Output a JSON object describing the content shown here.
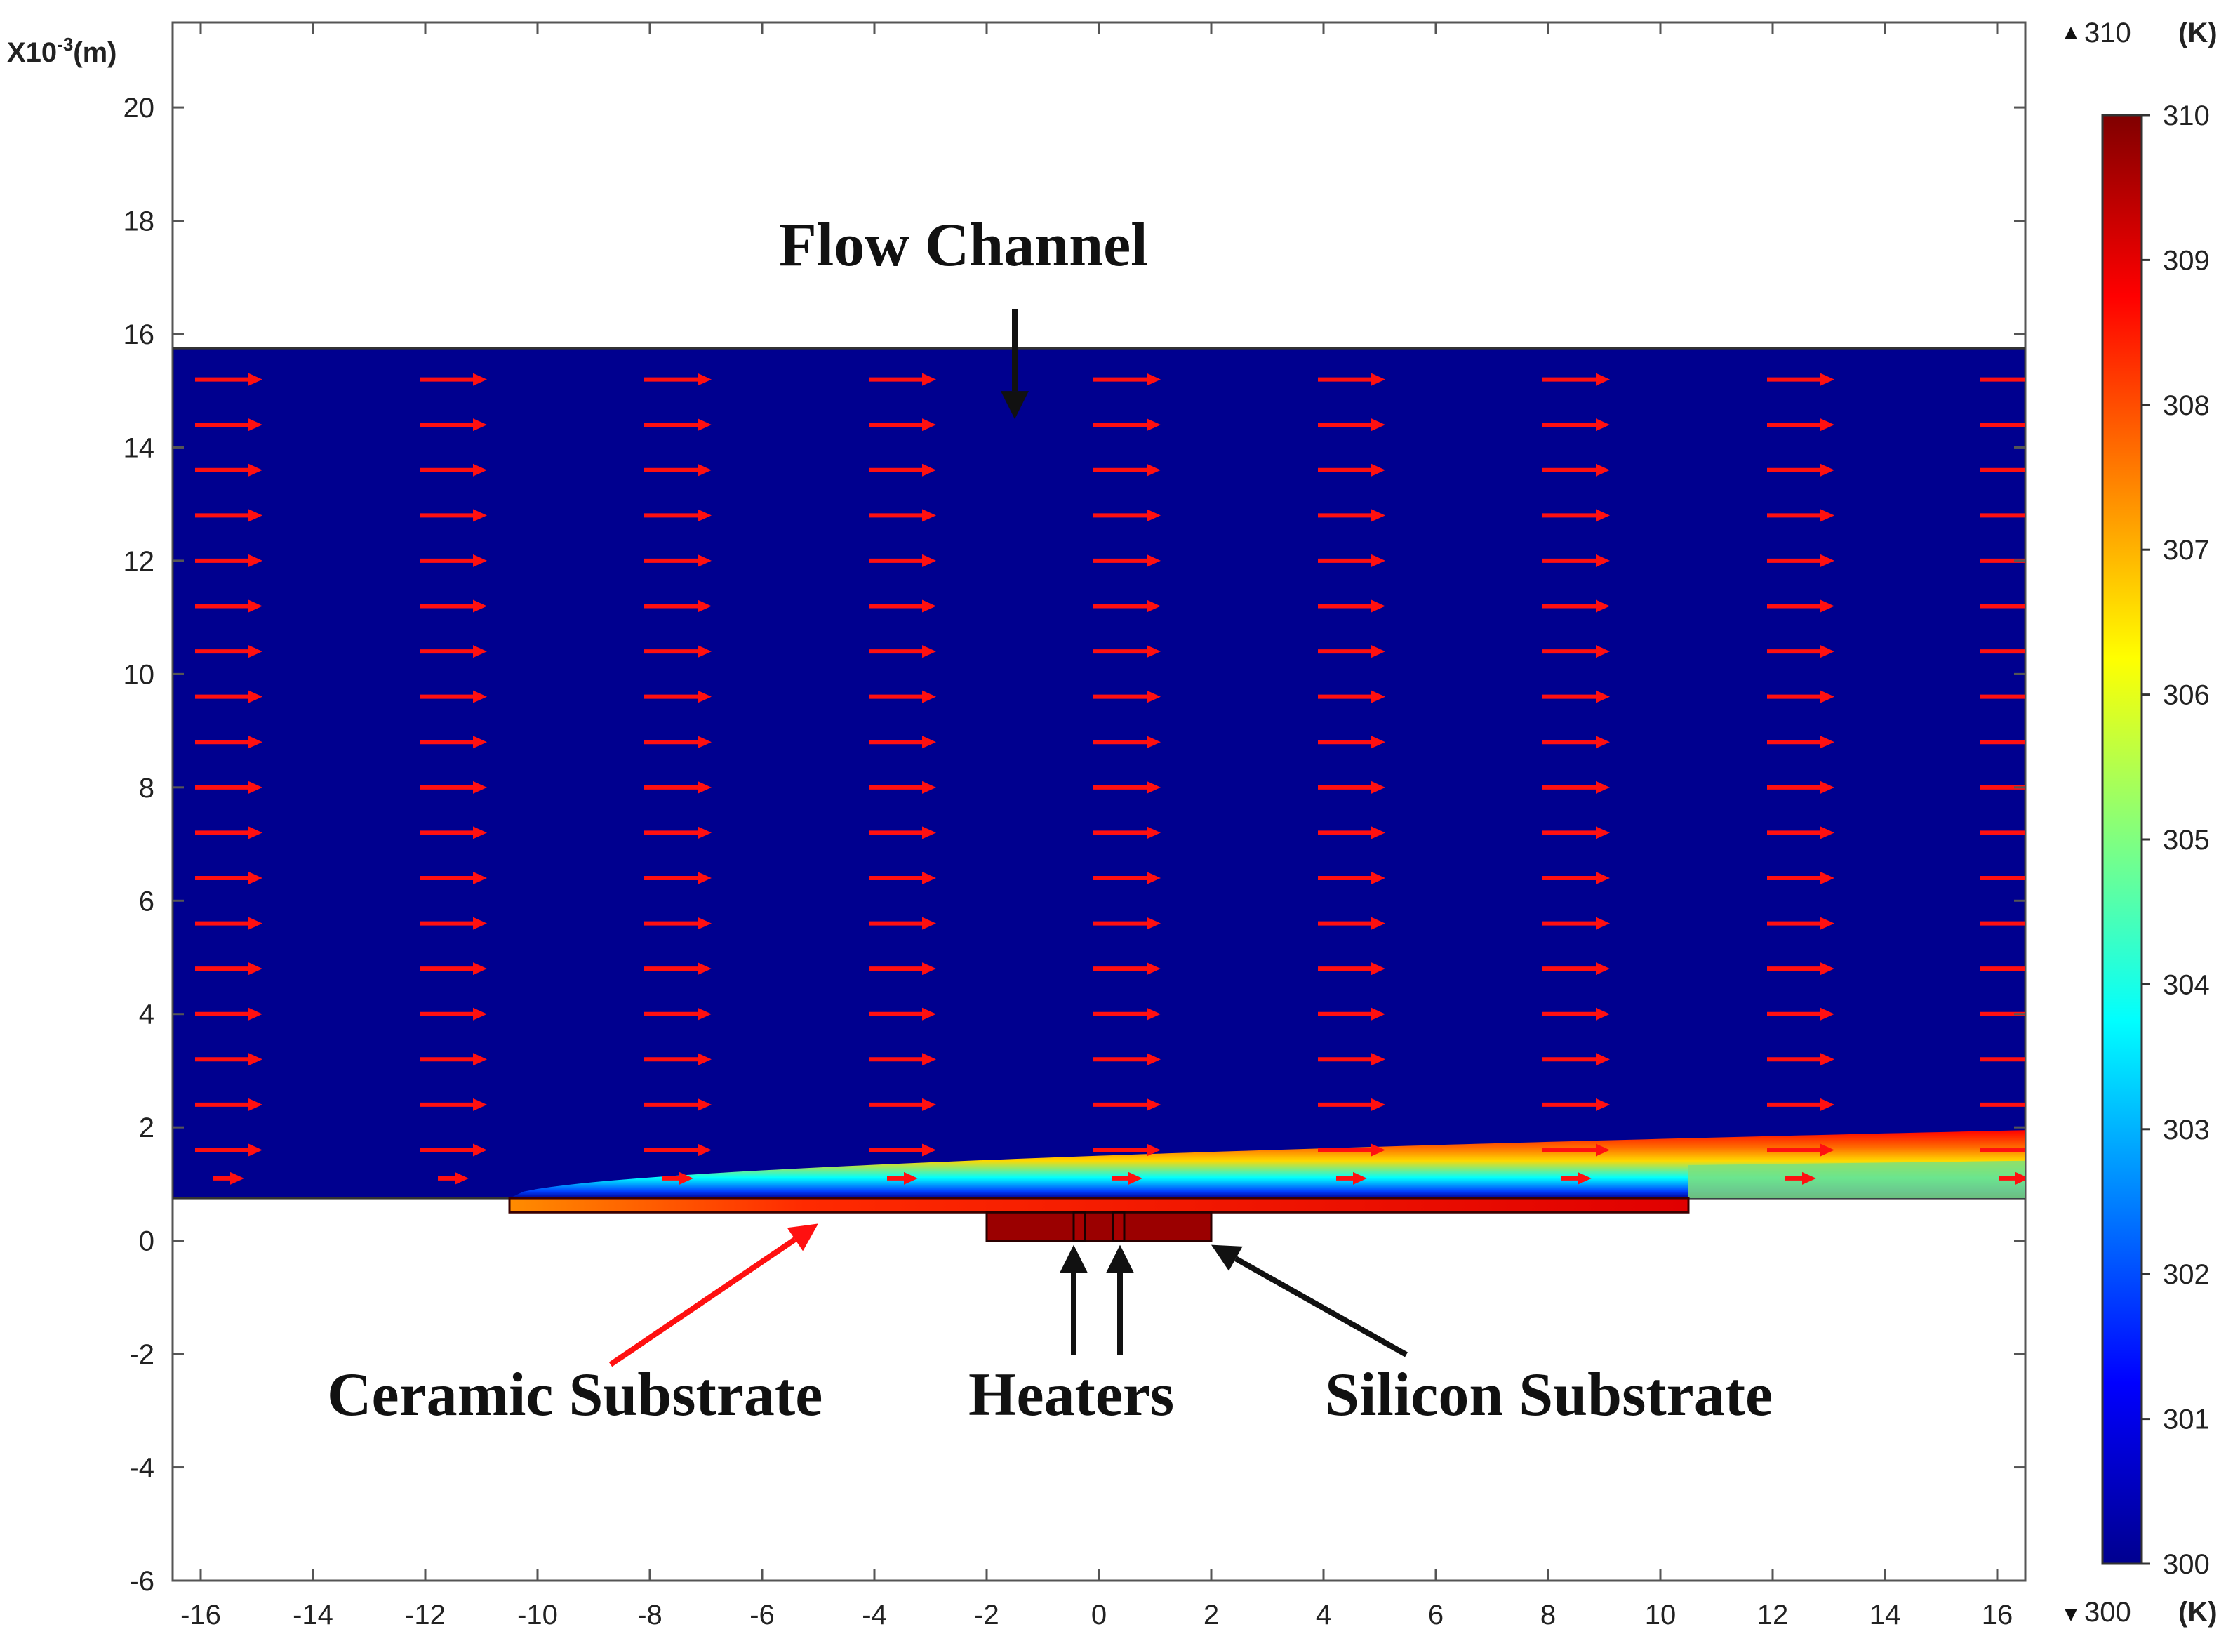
{
  "chart_data": {
    "type": "heatmap",
    "title": "",
    "axes": {
      "x": {
        "range": [
          -16.5,
          16.5
        ],
        "ticks": [
          -16,
          -14,
          -12,
          -10,
          -8,
          -6,
          -4,
          -2,
          0,
          2,
          4,
          6,
          8,
          10,
          12,
          14,
          16
        ]
      },
      "y": {
        "unit_label_prefix": "X10",
        "unit_label_exponent": "-3",
        "unit_label_suffix": "(m)",
        "range": [
          -6,
          21.5
        ],
        "ticks": [
          -6,
          -4,
          -2,
          0,
          2,
          4,
          6,
          8,
          10,
          12,
          14,
          16,
          18,
          20
        ]
      }
    },
    "regions": {
      "flow_channel": {
        "x": [
          -16.5,
          16.5
        ],
        "y": [
          0.75,
          15.75
        ],
        "base_temperature": 300
      },
      "ceramic_substrate": {
        "x": [
          -10.5,
          10.5
        ],
        "y": [
          0.5,
          0.75
        ],
        "temperature_range": [
          307.5,
          309.6
        ]
      },
      "silicon_substrate": {
        "x": [
          -2,
          2
        ],
        "y": [
          0,
          0.5
        ],
        "temperature": 310
      },
      "heaters": [
        {
          "x": [
            -0.45,
            -0.25
          ],
          "y": [
            0,
            0.5
          ]
        },
        {
          "x": [
            0.25,
            0.45
          ],
          "y": [
            0,
            0.5
          ]
        }
      ],
      "thermal_boundary_layer": {
        "start_x": -10.5,
        "max_thickness": 1.2,
        "peak_temperature": 309.5
      }
    },
    "velocity_arrows": {
      "columns_x": [
        -15.5,
        -11.5,
        -7.5,
        -3.5,
        0.5,
        4.5,
        8.5,
        12.5,
        16.3
      ],
      "rows_y": [
        15.2,
        14.4,
        13.6,
        12.8,
        12.0,
        11.2,
        10.4,
        9.6,
        8.8,
        8.0,
        7.2,
        6.4,
        5.6,
        4.8,
        4.0,
        3.2,
        2.4,
        1.6,
        1.1
      ],
      "direction": "+x"
    },
    "colorbar": {
      "min": 300,
      "max": 310,
      "ticks": [
        310,
        309,
        308,
        307,
        306,
        305,
        304,
        303,
        302,
        301,
        300
      ],
      "max_label": "310",
      "min_label": "300",
      "unit": "(K)",
      "colormap": "rainbow",
      "colors": [
        "#00008f",
        "#0000ff",
        "#0080ff",
        "#00ffff",
        "#80ff80",
        "#ffff00",
        "#ff8000",
        "#ff0000",
        "#800000"
      ]
    },
    "annotations": [
      {
        "text": "Flow Channel",
        "points_to": [
          -1.5,
          14.5
        ]
      },
      {
        "text": "Ceramic Substrate",
        "points_to": [
          -5,
          0.3
        ]
      },
      {
        "text": "Heaters",
        "points_to": [
          -0.4,
          0
        ]
      },
      {
        "text": "Silicon Substrate",
        "points_to": [
          2.0,
          0
        ]
      }
    ],
    "legend": "none",
    "grid": false
  }
}
